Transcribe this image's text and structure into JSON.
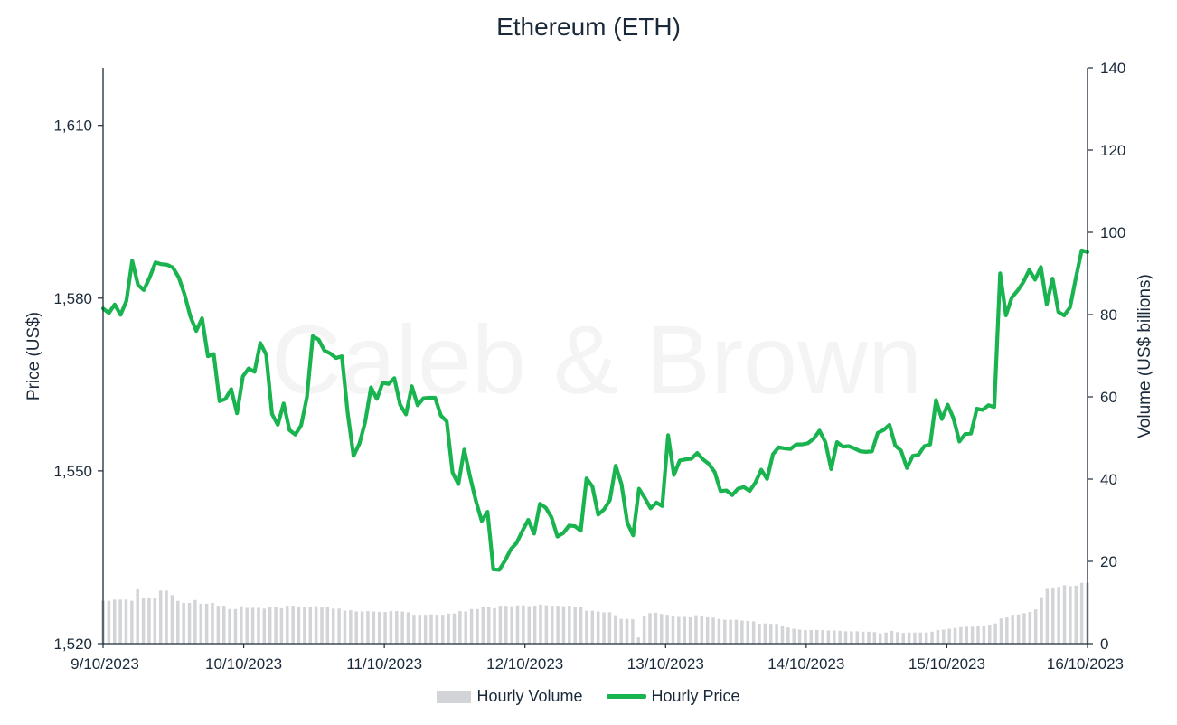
{
  "chart_data": {
    "type": "line",
    "title": "Ethereum (ETH)",
    "watermark": "Caleb & Brown",
    "xlabel": "",
    "ylabel_left": "Price (US$)",
    "ylabel_right": "Volume (US$ billions)",
    "ylim_left": [
      1520,
      1620
    ],
    "ylim_right": [
      0,
      140
    ],
    "yticks_left": [
      "1,520",
      "1,550",
      "1,580",
      "1,610"
    ],
    "yticks_left_values": [
      1520,
      1550,
      1580,
      1610
    ],
    "yticks_right": [
      "0",
      "20",
      "40",
      "60",
      "80",
      "100",
      "120",
      "140"
    ],
    "yticks_right_values": [
      0,
      20,
      40,
      60,
      80,
      100,
      120,
      140
    ],
    "x_tick_labels": [
      "9/10/2023",
      "10/10/2023",
      "11/10/2023",
      "12/10/2023",
      "13/10/2023",
      "14/10/2023",
      "15/10/2023",
      "16/10/2023"
    ],
    "x_tick_hours": [
      0,
      24,
      48,
      72,
      96,
      120,
      144,
      168
    ],
    "legend": [
      "Hourly Volume",
      "Hourly Price"
    ],
    "colors": {
      "price": "#19b34f",
      "volume": "#d3d4d8",
      "axis": "#1b2a3a"
    },
    "series": [
      {
        "name": "Hourly Price",
        "kind": "line",
        "axis": "left",
        "values": [
          1578.2,
          1577.4,
          1578.9,
          1577.1,
          1579.5,
          1586.5,
          1582.3,
          1581.4,
          1583.6,
          1586.2,
          1585.9,
          1585.8,
          1585.3,
          1583.6,
          1580.6,
          1576.8,
          1574.3,
          1576.5,
          1569.9,
          1570.3,
          1562.1,
          1562.5,
          1564.2,
          1560.0,
          1566.4,
          1567.8,
          1567.2,
          1572.2,
          1570.2,
          1559.9,
          1558.0,
          1561.7,
          1557.1,
          1556.3,
          1557.9,
          1562.8,
          1573.4,
          1572.8,
          1570.9,
          1570.4,
          1569.6,
          1569.9,
          1560.0,
          1552.6,
          1554.7,
          1558.5,
          1564.5,
          1562.5,
          1565.3,
          1565.1,
          1566.1,
          1561.5,
          1559.8,
          1564.7,
          1561.4,
          1562.6,
          1562.7,
          1562.7,
          1559.6,
          1558.6,
          1549.7,
          1547.7,
          1553.7,
          1549.0,
          1544.8,
          1541.3,
          1542.9,
          1532.9,
          1532.8,
          1534.4,
          1536.4,
          1537.5,
          1539.6,
          1541.5,
          1539.1,
          1544.3,
          1543.6,
          1541.9,
          1538.6,
          1539.2,
          1540.5,
          1540.4,
          1539.6,
          1548.7,
          1547.3,
          1542.4,
          1543.3,
          1544.9,
          1550.9,
          1547.7,
          1541.0,
          1538.8,
          1546.9,
          1545.3,
          1543.5,
          1544.5,
          1543.9,
          1556.2,
          1549.3,
          1551.8,
          1552.0,
          1552.1,
          1553.1,
          1552.0,
          1551.2,
          1549.8,
          1546.5,
          1546.6,
          1545.8,
          1546.9,
          1547.2,
          1546.5,
          1548.0,
          1550.2,
          1548.6,
          1552.9,
          1554.1,
          1553.9,
          1553.8,
          1554.6,
          1554.6,
          1554.8,
          1555.6,
          1557.0,
          1555.0,
          1550.3,
          1555.0,
          1554.2,
          1554.3,
          1553.9,
          1553.4,
          1553.3,
          1553.4,
          1556.6,
          1557.1,
          1558.0,
          1554.4,
          1553.5,
          1550.5,
          1552.6,
          1552.8,
          1554.3,
          1554.6,
          1562.3,
          1559.0,
          1561.5,
          1559.1,
          1555.1,
          1556.4,
          1556.5,
          1560.8,
          1560.6,
          1561.4,
          1561.1,
          1584.3,
          1577.0,
          1580.1,
          1581.3,
          1582.8,
          1584.9,
          1583.2,
          1585.4,
          1578.9,
          1583.4,
          1577.6,
          1577.0,
          1578.4,
          1583.5,
          1588.3,
          1588.0
        ]
      },
      {
        "name": "Hourly Volume",
        "kind": "bar",
        "axis": "right",
        "values": [
          10.4,
          10.4,
          10.7,
          10.7,
          10.7,
          10.4,
          13.2,
          11.1,
          11.1,
          11.1,
          12.9,
          12.9,
          11.8,
          10.4,
          9.9,
          9.9,
          10.6,
          9.7,
          9.7,
          9.9,
          9.2,
          9.2,
          8.4,
          8.4,
          9.1,
          8.7,
          8.7,
          8.7,
          8.5,
          8.8,
          8.8,
          8.6,
          9.2,
          9.2,
          9.0,
          8.9,
          8.9,
          9.1,
          8.9,
          8.9,
          8.5,
          8.5,
          8.0,
          8.1,
          7.8,
          7.8,
          7.9,
          7.8,
          7.7,
          7.7,
          7.9,
          7.9,
          7.8,
          7.6,
          7.0,
          7.0,
          7.0,
          7.1,
          7.0,
          7.0,
          7.3,
          7.3,
          7.9,
          7.8,
          8.4,
          8.4,
          8.9,
          8.9,
          8.6,
          9.2,
          9.2,
          9.1,
          9.3,
          9.3,
          9.1,
          9.2,
          9.5,
          9.3,
          9.2,
          9.2,
          9.1,
          9.2,
          8.8,
          8.8,
          8.0,
          8.0,
          7.8,
          7.6,
          7.6,
          6.9,
          6.0,
          6.0,
          5.9,
          1.5,
          6.8,
          7.4,
          7.5,
          7.2,
          7.0,
          6.8,
          6.7,
          6.7,
          6.6,
          6.9,
          6.8,
          6.6,
          6.3,
          6.0,
          5.8,
          5.8,
          5.8,
          5.6,
          5.5,
          5.4,
          4.8,
          4.9,
          4.8,
          4.8,
          4.4,
          3.9,
          3.6,
          3.4,
          3.3,
          3.3,
          3.3,
          3.3,
          3.2,
          3.2,
          3.1,
          3.0,
          3.0,
          3.0,
          2.9,
          2.9,
          2.8,
          2.5,
          2.7,
          3.1,
          2.8,
          2.6,
          2.7,
          2.7,
          2.7,
          2.7,
          2.9,
          3.3,
          3.4,
          3.6,
          3.8,
          4.0,
          4.1,
          4.1,
          4.4,
          4.4,
          4.6,
          4.9,
          6.1,
          6.5,
          7.0,
          7.1,
          7.4,
          7.7,
          8.3,
          11.3,
          13.3,
          13.4,
          13.8,
          14.2,
          14.0,
          14.1,
          14.8,
          14.8
        ]
      }
    ]
  }
}
